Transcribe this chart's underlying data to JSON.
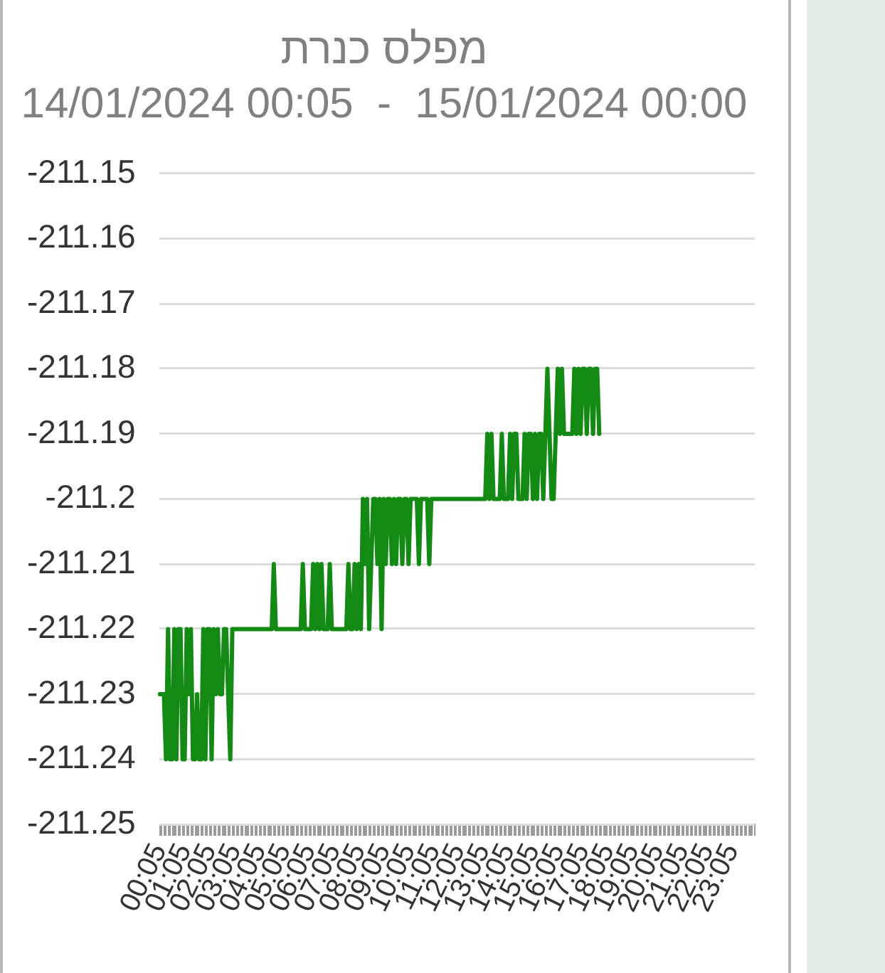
{
  "chart_data": {
    "type": "line",
    "title": "מפלס כנרת",
    "subtitle": "14/01/2024 00:05  -  15/01/2024 00:00",
    "categories": [
      "00:05",
      null,
      null,
      null,
      null,
      null,
      null,
      null,
      null,
      null,
      null,
      null,
      "01:05",
      null,
      null,
      null,
      null,
      null,
      null,
      null,
      null,
      null,
      null,
      null,
      "02:05",
      null,
      null,
      null,
      null,
      null,
      null,
      null,
      null,
      null,
      null,
      null,
      "03:05",
      null,
      null,
      null,
      null,
      null,
      null,
      null,
      null,
      null,
      null,
      null,
      "04:05",
      null,
      null,
      null,
      null,
      null,
      null,
      null,
      null,
      null,
      null,
      null,
      "05:05",
      null,
      null,
      null,
      null,
      null,
      null,
      null,
      null,
      null,
      null,
      null,
      "06:05",
      null,
      null,
      null,
      null,
      null,
      null,
      null,
      null,
      null,
      null,
      null,
      "07:05",
      null,
      null,
      null,
      null,
      null,
      null,
      null,
      null,
      null,
      null,
      null,
      "08:05",
      null,
      null,
      null,
      null,
      null,
      null,
      null,
      null,
      null,
      null,
      null,
      "09:05",
      null,
      null,
      null,
      null,
      null,
      null,
      null,
      null,
      null,
      null,
      null,
      "10:05",
      null,
      null,
      null,
      null,
      null,
      null,
      null,
      null,
      null,
      null,
      null,
      "11:05",
      null,
      null,
      null,
      null,
      null,
      null,
      null,
      null,
      null,
      null,
      null,
      "12:05",
      null,
      null,
      null,
      null,
      null,
      null,
      null,
      null,
      null,
      null,
      null,
      "13:05",
      null,
      null,
      null,
      null,
      null,
      null,
      null,
      null,
      null,
      null,
      null,
      "14:05",
      null,
      null,
      null,
      null,
      null,
      null,
      null,
      null,
      null,
      null,
      null,
      "15:05",
      null,
      null,
      null,
      null,
      null,
      null,
      null,
      null,
      null,
      null,
      null,
      "16:05",
      null,
      null,
      null,
      null,
      null,
      null,
      null,
      null,
      null,
      null,
      null,
      "17:05",
      null,
      null,
      null,
      null,
      null,
      null,
      null,
      null,
      null,
      null,
      null,
      "18:05",
      null,
      null,
      null,
      null,
      null,
      null,
      null,
      null,
      null,
      null,
      null,
      "19:05",
      null,
      null,
      null,
      null,
      null,
      null,
      null,
      null,
      null,
      null,
      null,
      "20:05",
      null,
      null,
      null,
      null,
      null,
      null,
      null,
      null,
      null,
      null,
      null,
      "21:05",
      null,
      null,
      null,
      null,
      null,
      null,
      null,
      null,
      null,
      null,
      null,
      "22:05",
      null,
      null,
      null,
      null,
      null,
      null,
      null,
      null,
      null,
      null,
      null,
      "23:05",
      null,
      null,
      null,
      null,
      null,
      null,
      null,
      null,
      null,
      null,
      null
    ],
    "series": [
      {
        "color": "#138a13",
        "values": [
          -211.23,
          -211.23,
          -211.23,
          -211.24,
          -211.22,
          -211.24,
          -211.24,
          -211.22,
          -211.24,
          -211.22,
          -211.22,
          -211.24,
          -211.24,
          -211.22,
          -211.23,
          -211.22,
          -211.24,
          -211.24,
          -211.23,
          -211.24,
          -211.24,
          -211.22,
          -211.24,
          -211.22,
          -211.22,
          -211.24,
          -211.22,
          -211.23,
          -211.22,
          -211.23,
          -211.23,
          -211.22,
          -211.22,
          -211.23,
          -211.24,
          -211.22,
          -211.22,
          -211.22,
          -211.22,
          -211.22,
          -211.22,
          -211.22,
          -211.22,
          -211.22,
          -211.22,
          -211.22,
          -211.22,
          -211.22,
          -211.22,
          -211.22,
          -211.22,
          -211.22,
          -211.22,
          -211.22,
          -211.22,
          -211.21,
          -211.22,
          -211.22,
          -211.22,
          -211.22,
          -211.22,
          -211.22,
          -211.22,
          -211.22,
          -211.22,
          -211.22,
          -211.22,
          -211.22,
          -211.22,
          -211.21,
          -211.22,
          -211.22,
          -211.22,
          -211.22,
          -211.21,
          -211.22,
          -211.21,
          -211.22,
          -211.21,
          -211.22,
          -211.22,
          -211.22,
          -211.21,
          -211.22,
          -211.22,
          -211.22,
          -211.22,
          -211.22,
          -211.22,
          -211.22,
          -211.22,
          -211.21,
          -211.22,
          -211.22,
          -211.21,
          -211.22,
          -211.21,
          -211.22,
          -211.2,
          -211.21,
          -211.2,
          -211.22,
          -211.21,
          -211.2,
          -211.2,
          -211.21,
          -211.2,
          -211.22,
          -211.2,
          -211.21,
          -211.2,
          -211.2,
          -211.21,
          -211.2,
          -211.21,
          -211.2,
          -211.2,
          -211.21,
          -211.2,
          -211.2,
          -211.21,
          -211.2,
          -211.2,
          -211.2,
          -211.2,
          -211.21,
          -211.2,
          -211.2,
          -211.2,
          -211.2,
          -211.21,
          -211.2,
          -211.2,
          -211.2,
          -211.2,
          -211.2,
          -211.2,
          -211.2,
          -211.2,
          -211.2,
          -211.2,
          -211.2,
          -211.2,
          -211.2,
          -211.2,
          -211.2,
          -211.2,
          -211.2,
          -211.2,
          -211.2,
          -211.2,
          -211.2,
          -211.2,
          -211.2,
          -211.2,
          -211.2,
          -211.2,
          -211.2,
          -211.19,
          -211.2,
          -211.19,
          -211.2,
          -211.2,
          -211.2,
          -211.2,
          -211.19,
          -211.2,
          -211.2,
          -211.2,
          -211.19,
          -211.2,
          -211.19,
          -211.19,
          -211.2,
          -211.2,
          -211.2,
          -211.19,
          -211.2,
          -211.19,
          -211.19,
          -211.2,
          -211.19,
          -211.2,
          -211.19,
          -211.19,
          -211.2,
          -211.19,
          -211.18,
          -211.19,
          -211.2,
          -211.2,
          -211.19,
          -211.18,
          -211.19,
          -211.18,
          -211.19,
          -211.19,
          -211.19,
          -211.19,
          -211.19,
          -211.18,
          -211.19,
          -211.18,
          -211.19,
          -211.18,
          -211.18,
          -211.19,
          -211.18,
          -211.18,
          -211.19,
          -211.18,
          -211.18,
          -211.19,
          null,
          null,
          null,
          null,
          null,
          null,
          null,
          null,
          null,
          null,
          null,
          null,
          null,
          null,
          null,
          null,
          null,
          null,
          null,
          null,
          null,
          null,
          null,
          null,
          null,
          null,
          null,
          null,
          null,
          null,
          null,
          null,
          null,
          null,
          null,
          null,
          null,
          null,
          null,
          null,
          null,
          null,
          null,
          null,
          null,
          null,
          null,
          null,
          null,
          null,
          null,
          null,
          null,
          null,
          null,
          null,
          null,
          null,
          null,
          null,
          null,
          null,
          null,
          null,
          null,
          null,
          null,
          null,
          null,
          null,
          null,
          null,
          null,
          null,
          null
        ]
      }
    ],
    "ylim": [
      -211.25,
      -211.15
    ],
    "yticks": [
      -211.25,
      -211.24,
      -211.23,
      -211.22,
      -211.21,
      -211.2,
      -211.19,
      -211.18,
      -211.17,
      -211.16,
      -211.15
    ],
    "grid": "y",
    "marker": "none"
  }
}
